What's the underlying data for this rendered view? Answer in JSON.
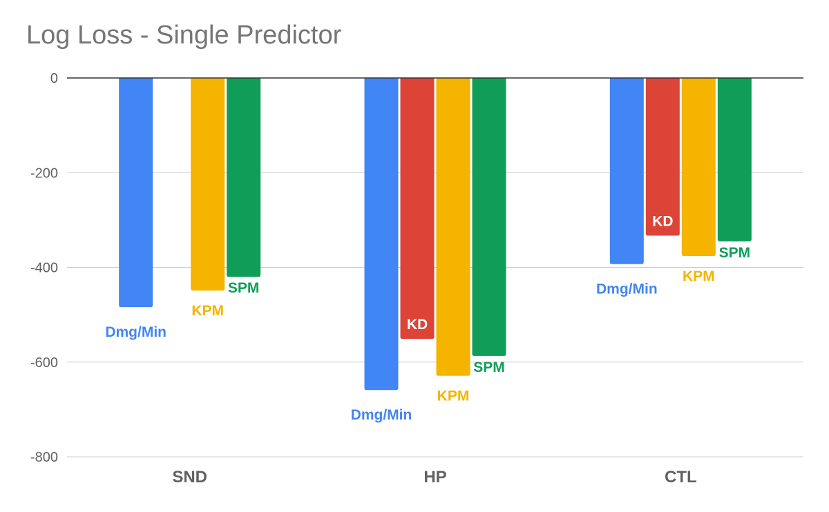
{
  "chart_data": {
    "type": "bar",
    "title": "Log Loss - Single Predictor",
    "categories": [
      "SND",
      "HP",
      "CTL"
    ],
    "series": [
      {
        "name": "Dmg/Min",
        "color": "#4285f4",
        "values": [
          -484,
          -659,
          -393
        ]
      },
      {
        "name": "KD",
        "color": "#db4437",
        "values": [
          null,
          -551,
          -333
        ]
      },
      {
        "name": "KPM",
        "color": "#f4b400",
        "values": [
          -449,
          -629,
          -376
        ]
      },
      {
        "name": "SPM",
        "color": "#0f9d58",
        "values": [
          -420,
          -587,
          -345
        ]
      }
    ],
    "ylim": [
      -800,
      0
    ],
    "yticks": [
      0,
      -200,
      -400,
      -600,
      -800
    ],
    "ytick_labels": [
      "0",
      "-200",
      "-400",
      "-600",
      "-800"
    ],
    "grid": true,
    "legend": "none"
  }
}
